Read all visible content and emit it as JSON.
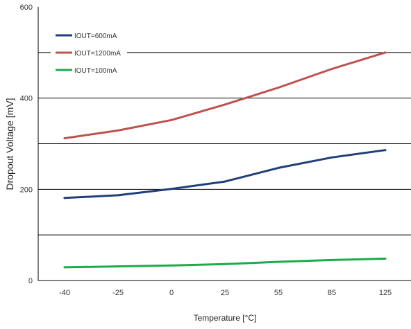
{
  "chart_data": {
    "type": "line",
    "title": "",
    "xlabel": "Temperature [°C]",
    "ylabel": "Dropout Voltage [mV]",
    "categories": [
      "-40",
      "-25",
      "0",
      "25",
      "55",
      "85",
      "125"
    ],
    "ylim": [
      0,
      600
    ],
    "y_ticks": [
      0,
      200,
      400,
      600
    ],
    "y_gridlines": [
      100,
      200,
      300,
      400,
      500
    ],
    "grid": true,
    "legend_position": "top-left",
    "series": [
      {
        "name": "IOUT=600mA",
        "color": "#1f3f7a",
        "values": [
          181,
          187,
          201,
          217,
          247,
          270,
          286
        ]
      },
      {
        "name": "IOUT=1200mA",
        "color": "#c0504d",
        "values": [
          312,
          329,
          352,
          386,
          423,
          464,
          500
        ]
      },
      {
        "name": "IOUT=100mA",
        "color": "#1aab4b",
        "values": [
          29,
          31,
          33,
          36,
          41,
          45,
          48
        ]
      }
    ]
  }
}
